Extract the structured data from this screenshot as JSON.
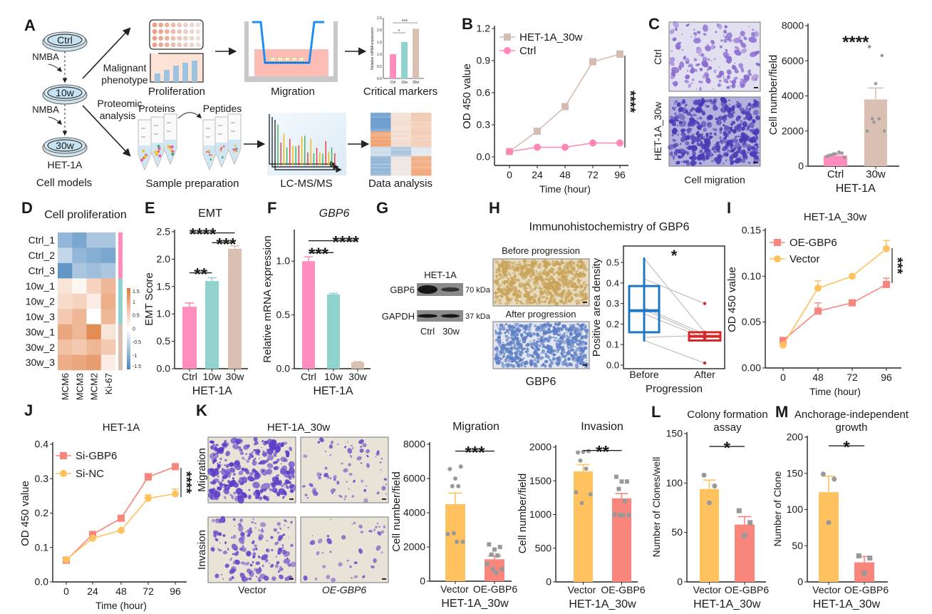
{
  "panel_labels": {
    "A": "A",
    "B": "B",
    "C": "C",
    "D": "D",
    "E": "E",
    "F": "F",
    "G": "G",
    "H": "H",
    "I": "I",
    "J": "J",
    "K": "K",
    "L": "L",
    "M": "M"
  },
  "panel_A": {
    "dishes": [
      "Ctrl",
      "10w",
      "30w"
    ],
    "nmba": [
      "NMBA",
      "NMBA"
    ],
    "cell_line": "HET-1A",
    "cell_models": "Cell models",
    "branch_top": [
      "Malignant",
      "phenotype"
    ],
    "branch_bottom": [
      "Proteomic",
      "analysis"
    ],
    "steps_top": [
      "Proliferation",
      "Migration",
      "Critical markers"
    ],
    "proteins": "Proteins",
    "peptides": "Peptides",
    "steps_bottom": [
      "Sample preparation",
      "LC-MS/MS",
      "Data analysis"
    ],
    "mini_chart": {
      "ylabel": "Relative mRNA expression",
      "categories": [
        "Ctrl",
        "10w",
        "30w"
      ],
      "values": [
        1.0,
        1.5,
        2.05
      ],
      "ytick_labels": [
        "0.0",
        "0.5",
        "1.0",
        "1.5",
        "2.0",
        "2.5"
      ],
      "significance": [
        "*",
        "***"
      ]
    }
  },
  "panel_C_images": {
    "row_labels": [
      "Ctrl",
      "HET-1A_30w"
    ],
    "caption": "Cell migration"
  },
  "panel_G": {
    "title": "HET-1A",
    "rows": [
      "GBP6",
      "GAPDH"
    ],
    "sizes": [
      "70 kDa",
      "37 kDa"
    ],
    "lanes": [
      "Ctrl",
      "30w"
    ]
  },
  "panel_H": {
    "title": "Immunohistochemistry of GBP6",
    "before": "Before progression",
    "after": "After progression",
    "caption": "GBP6"
  },
  "panel_K": {
    "title": "HET-1A_30w",
    "rows": [
      "Migration",
      "Invasion"
    ],
    "cols": [
      "Vector",
      "OE-GBP6"
    ]
  },
  "colors": {
    "ctrl": "#ff8cbd",
    "w10": "#8fd2ce",
    "w30": "#d9c0b3",
    "vector": "#ffc25e",
    "oe": "#f8867c",
    "point": "#999999",
    "box_before": "#1f77c4",
    "box_after": "#d62728"
  },
  "chart_data": [
    {
      "id": "B",
      "type": "line",
      "title": "",
      "xlabel": "Time (hour)",
      "ylabel": "OD 450 value",
      "x": [
        "0",
        "24",
        "48",
        "72",
        "96"
      ],
      "ylim": [
        0,
        1.2
      ],
      "yticks": [
        0,
        0.3,
        0.6,
        0.9,
        1.2
      ],
      "ytick_labels": [
        "0.0",
        "0.3",
        "0.6",
        "0.9",
        "1.2"
      ],
      "series": [
        {
          "name": "HET-1A_30w",
          "marker": "square",
          "color": "#d6bcb0",
          "values": [
            0.05,
            0.24,
            0.47,
            0.89,
            0.96
          ],
          "errors": [
            null,
            null,
            null,
            null,
            0.99
          ]
        },
        {
          "name": "Ctrl",
          "marker": "circle",
          "color": "#ff86b5",
          "values": [
            0.05,
            0.09,
            0.09,
            0.13,
            0.13
          ],
          "errors": [
            null,
            null,
            null,
            null,
            null
          ]
        }
      ],
      "significance": "****",
      "legend": "top-left"
    },
    {
      "id": "C",
      "type": "bar",
      "title": "",
      "xlabel": "HET-1A",
      "ylabel": "Cell number/field",
      "categories": [
        "Ctrl",
        "30w"
      ],
      "values": [
        600,
        3800
      ],
      "errors": [
        680,
        4450
      ],
      "colors": [
        "#ff8cbd",
        "#d9c0b3"
      ],
      "points": [
        [
          600,
          750,
          700,
          650,
          800,
          550,
          500,
          700
        ],
        [
          6800,
          6300,
          4700,
          2700,
          2700,
          2000,
          2000,
          2500
        ]
      ],
      "ylim": [
        0,
        8000
      ],
      "yticks": [
        0,
        2000,
        4000,
        6000,
        8000
      ],
      "ytick_labels": [
        "0",
        "2000",
        "4000",
        "6000",
        "8000"
      ],
      "significance": [
        {
          "from": 0,
          "to": 1,
          "label": "****",
          "y": 7300
        }
      ]
    },
    {
      "id": "D",
      "type": "heatmap",
      "title": "Cell proliferation",
      "rows": [
        "Ctrl_1",
        "Ctrl_2",
        "Ctrl_3",
        "10w_1",
        "10w_2",
        "10w_3",
        "30w_1",
        "30w_2",
        "30w_3"
      ],
      "columns": [
        "MCM6",
        "MCM3",
        "MCM2",
        "Ki-67"
      ],
      "groups": [
        "Ctrl",
        "Ctrl",
        "Ctrl",
        "10w",
        "10w",
        "10w",
        "30w",
        "30w",
        "30w"
      ],
      "values": [
        [
          -0.9,
          -1.1,
          -0.7,
          -0.7
        ],
        [
          -0.5,
          -0.9,
          -1.0,
          -1.1
        ],
        [
          -1.3,
          -0.7,
          -0.8,
          -0.7
        ],
        [
          0.3,
          0.1,
          0.5,
          0.8
        ],
        [
          0.4,
          0.5,
          0.2,
          0.9
        ],
        [
          0.6,
          0.8,
          0.0,
          0.8
        ],
        [
          1.0,
          0.8,
          1.3,
          0.3
        ],
        [
          0.7,
          0.6,
          0.8,
          0.6
        ],
        [
          0.9,
          1.0,
          1.1,
          0.2
        ]
      ],
      "scale": [
        -1.5,
        1.5
      ],
      "scale_labels": [
        "1.5",
        "1",
        "0.5",
        "0",
        "-0.5",
        "-1",
        "-1.5"
      ]
    },
    {
      "id": "E",
      "type": "bar",
      "title": "EMT",
      "xlabel": "HET-1A",
      "ylabel": "EMT Score",
      "categories": [
        "Ctrl",
        "10w",
        "30w"
      ],
      "values": [
        1.13,
        1.6,
        2.19
      ],
      "errors": [
        1.2,
        1.66,
        2.24
      ],
      "colors": [
        "#ff8cbd",
        "#8fd2ce",
        "#d9c0b3"
      ],
      "ylim": [
        0,
        2.5
      ],
      "yticks": [
        0,
        0.5,
        1.0,
        1.5,
        2.0,
        2.5
      ],
      "ytick_labels": [
        "0.0",
        "0.5",
        "1.0",
        "1.5",
        "2.0",
        "2.5"
      ],
      "significance": [
        {
          "from": 0,
          "to": 1,
          "label": "**",
          "y": 1.75
        },
        {
          "from": 1,
          "to": 2,
          "label": "***",
          "y": 2.3
        },
        {
          "from": 0,
          "to": 2,
          "label": "****",
          "y": 2.48
        }
      ]
    },
    {
      "id": "F",
      "type": "bar",
      "title": "GBP6",
      "xlabel": "HET-1A",
      "ylabel": "Relative mRNA expression",
      "categories": [
        "Ctrl",
        "10w",
        "30w"
      ],
      "values": [
        1.0,
        0.69,
        0.06
      ],
      "errors": [
        1.04,
        0.7,
        0.065
      ],
      "colors": [
        "#ff8cbd",
        "#8fd2ce",
        "#d9c0b3"
      ],
      "ylim": [
        0,
        1.3
      ],
      "yticks": [
        0,
        0.5,
        1.0
      ],
      "ytick_labels": [
        "0.0",
        "0.5",
        "1.0"
      ],
      "significance": [
        {
          "from": 0,
          "to": 1,
          "label": "***",
          "y": 1.08
        },
        {
          "from": 0,
          "to": 2,
          "label": "****",
          "y": 1.19
        }
      ]
    },
    {
      "id": "H",
      "type": "box",
      "xlabel": "Progression",
      "ylabel": "Positive area density",
      "categories": [
        "Before",
        "After"
      ],
      "boxes": [
        {
          "min": 0.12,
          "q1": 0.16,
          "median": 0.265,
          "q3": 0.385,
          "max": 0.52
        },
        {
          "min": 0.12,
          "q1": 0.12,
          "median": 0.14,
          "q3": 0.16,
          "max": 0.16
        }
      ],
      "pairs": [
        [
          0.52,
          0.16
        ],
        [
          0.42,
          0.3
        ],
        [
          0.28,
          0.15
        ],
        [
          0.27,
          0.14
        ],
        [
          0.25,
          0.13
        ],
        [
          0.135,
          0.145
        ],
        [
          0.12,
          0.01
        ]
      ],
      "ylim": [
        0,
        0.5
      ],
      "yticks": [
        0,
        0.1,
        0.2,
        0.3,
        0.4,
        0.5
      ],
      "ytick_labels": [
        "0.0",
        "0.1",
        "0.2",
        "0.3",
        "0.4",
        "0.5"
      ],
      "significance": "*"
    },
    {
      "id": "I",
      "type": "line",
      "title": "HET-1A_30w",
      "xlabel": "Time (hour)",
      "ylabel": "OD 450 value",
      "x": [
        "0",
        "48",
        "72",
        "96"
      ],
      "ylim": [
        0,
        0.15
      ],
      "yticks": [
        0,
        0.05,
        0.1,
        0.15
      ],
      "ytick_labels": [
        "0.00",
        "0.05",
        "0.10",
        "0.15"
      ],
      "series": [
        {
          "name": "OE-GBP6",
          "marker": "square",
          "color": "#f8867c",
          "values": [
            0.03,
            0.062,
            0.071,
            0.091
          ],
          "errors": [
            null,
            0.071,
            null,
            0.098
          ]
        },
        {
          "name": "Vector",
          "marker": "circle",
          "color": "#ffc25e",
          "values": [
            0.025,
            0.087,
            0.1,
            0.13
          ],
          "errors": [
            null,
            0.095,
            null,
            0.139
          ]
        }
      ],
      "significance": "***",
      "legend": "top-left"
    },
    {
      "id": "J",
      "type": "line",
      "title": "HET-1A",
      "xlabel": "Time (hour)",
      "ylabel": "OD 450 value",
      "x": [
        "0",
        "24",
        "48",
        "72",
        "96"
      ],
      "ylim": [
        0,
        0.4
      ],
      "yticks": [
        0,
        0.1,
        0.2,
        0.3,
        0.4
      ],
      "ytick_labels": [
        "0.0",
        "0.1",
        "0.2",
        "0.3",
        "0.4"
      ],
      "series": [
        {
          "name": "Si-GBP6",
          "marker": "square",
          "color": "#f8867c",
          "values": [
            0.063,
            0.138,
            0.185,
            0.305,
            0.335
          ],
          "errors": [
            null,
            null,
            null,
            0.315,
            null
          ]
        },
        {
          "name": "Si-NC",
          "marker": "circle",
          "color": "#ffc25e",
          "values": [
            0.065,
            0.127,
            0.15,
            0.243,
            0.256
          ],
          "errors": [
            null,
            null,
            null,
            0.253,
            0.27
          ]
        }
      ],
      "significance": "****",
      "legend": "top-left"
    },
    {
      "id": "K-migration",
      "type": "bar",
      "title": "Migration",
      "xlabel": "HET-1A_30w",
      "ylabel": "Cell number/field",
      "categories": [
        "Vector",
        "OE-GBP6"
      ],
      "values": [
        4500,
        1280
      ],
      "errors": [
        5150,
        1480
      ],
      "colors": [
        "#ffc25e",
        "#f8867c"
      ],
      "points": [
        [
          6550,
          6700,
          6000,
          5550,
          5550,
          2750,
          2300,
          2800,
          2300
        ],
        [
          2150,
          2000,
          1850,
          1550,
          1500,
          1000,
          700,
          700,
          500
        ]
      ],
      "ylim": [
        0,
        8000
      ],
      "yticks": [
        0,
        2000,
        4000,
        6000,
        8000
      ],
      "ytick_labels": [
        "0",
        "2000",
        "4000",
        "6000",
        "8000"
      ],
      "significance": [
        {
          "from": 0,
          "to": 1,
          "label": "***",
          "y": 7600
        }
      ]
    },
    {
      "id": "K-invasion",
      "type": "bar",
      "title": "Invasion",
      "xlabel": "HET-1A_30w",
      "ylabel": "Cell number/field",
      "categories": [
        "Vector",
        "OE-GBP6"
      ],
      "values": [
        1640,
        1240
      ],
      "errors": [
        1740,
        1310
      ],
      "colors": [
        "#ffc25e",
        "#f8867c"
      ],
      "points": [
        [
          1920,
          1940,
          1930,
          1800,
          1680,
          1330,
          1300,
          1170
        ],
        [
          1560,
          1490,
          1490,
          1380,
          1200,
          1000,
          990,
          990,
          990
        ]
      ],
      "ylim": [
        0,
        2000
      ],
      "yticks": [
        0,
        500,
        1000,
        1500,
        2000
      ],
      "ytick_labels": [
        "0",
        "500",
        "1000",
        "1500",
        "2000"
      ],
      "significance": [
        {
          "from": 0,
          "to": 1,
          "label": "**",
          "y": 1950
        }
      ]
    },
    {
      "id": "L",
      "type": "bar",
      "title_lines": [
        "Colony formation",
        "assay"
      ],
      "xlabel": "HET-1A_30w",
      "ylabel": "Number of Clones/well",
      "categories": [
        "Vector",
        "OE-GBP6"
      ],
      "values": [
        94,
        58
      ],
      "errors": [
        103,
        66
      ],
      "colors": [
        "#ffc25e",
        "#f8867c"
      ],
      "points": [
        [
          108,
          97,
          80
        ],
        [
          72,
          60,
          47
        ]
      ],
      "ylim": [
        0,
        150
      ],
      "yticks": [
        0,
        50,
        100,
        150
      ],
      "ytick_labels": [
        "0",
        "50",
        "100",
        "150"
      ],
      "significance": [
        {
          "from": 0,
          "to": 1,
          "label": "*",
          "y": 137
        }
      ]
    },
    {
      "id": "M",
      "type": "bar",
      "title_lines": [
        "Anchorage-independent",
        "growth"
      ],
      "xlabel": "HET-1A_30w",
      "ylabel": "Number of Clone",
      "categories": [
        "Vector",
        "OE-GBP6"
      ],
      "values": [
        124,
        27
      ],
      "errors": [
        146,
        35
      ],
      "colors": [
        "#ffc25e",
        "#f8867c"
      ],
      "points": [
        [
          149,
          142,
          82
        ],
        [
          36,
          33,
          12
        ]
      ],
      "ylim": [
        0,
        200
      ],
      "yticks": [
        0,
        50,
        100,
        150,
        200
      ],
      "ytick_labels": [
        "0",
        "50",
        "100",
        "150",
        "200"
      ],
      "significance": [
        {
          "from": 0,
          "to": 1,
          "label": "*",
          "y": 188
        }
      ]
    }
  ]
}
